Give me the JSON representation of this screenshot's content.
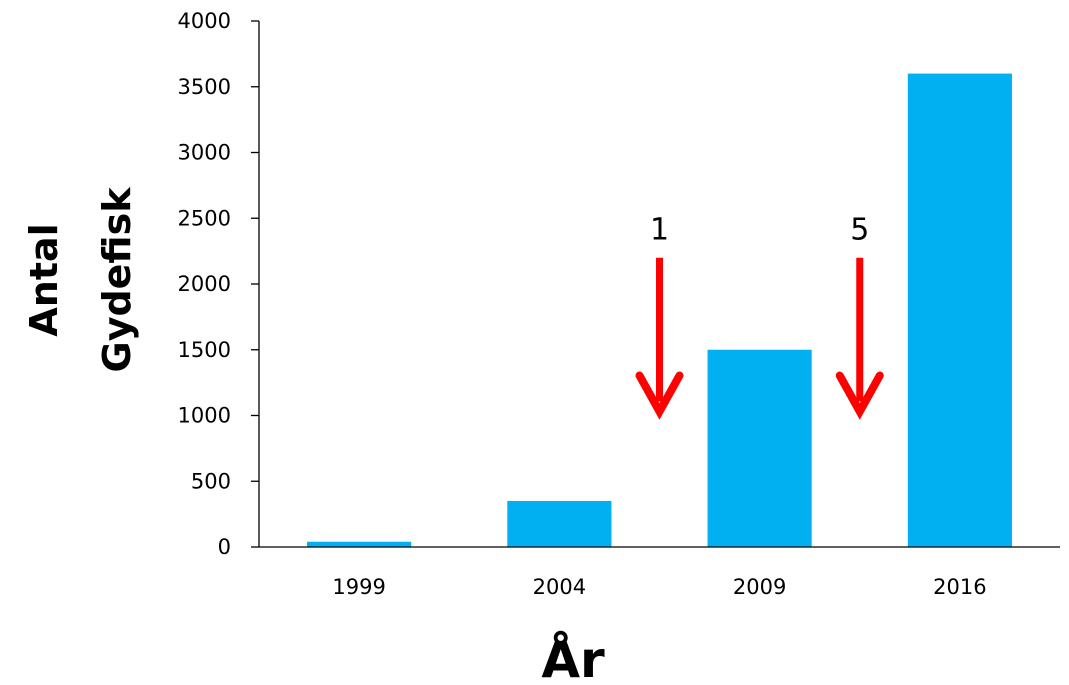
{
  "chart_data": {
    "type": "bar",
    "categories": [
      "1999",
      "2004",
      "2009",
      "2016"
    ],
    "values": [
      40,
      350,
      1500,
      3600
    ],
    "xlabel": "År",
    "ylabel": [
      "Antal",
      "Gydefisk"
    ],
    "ylim": [
      0,
      4000
    ],
    "yticks": [
      0,
      500,
      1000,
      1500,
      2000,
      2500,
      3000,
      3500,
      4000
    ],
    "grid": false,
    "legend": "none",
    "bar_color": "#00B0F0",
    "annotations": [
      {
        "label": "1",
        "after_category": 1,
        "color": "#FF0000",
        "from_value": 2200,
        "to_value": 1030
      },
      {
        "label": "5",
        "after_category": 2,
        "color": "#FF0000",
        "from_value": 2200,
        "to_value": 1030
      }
    ]
  }
}
